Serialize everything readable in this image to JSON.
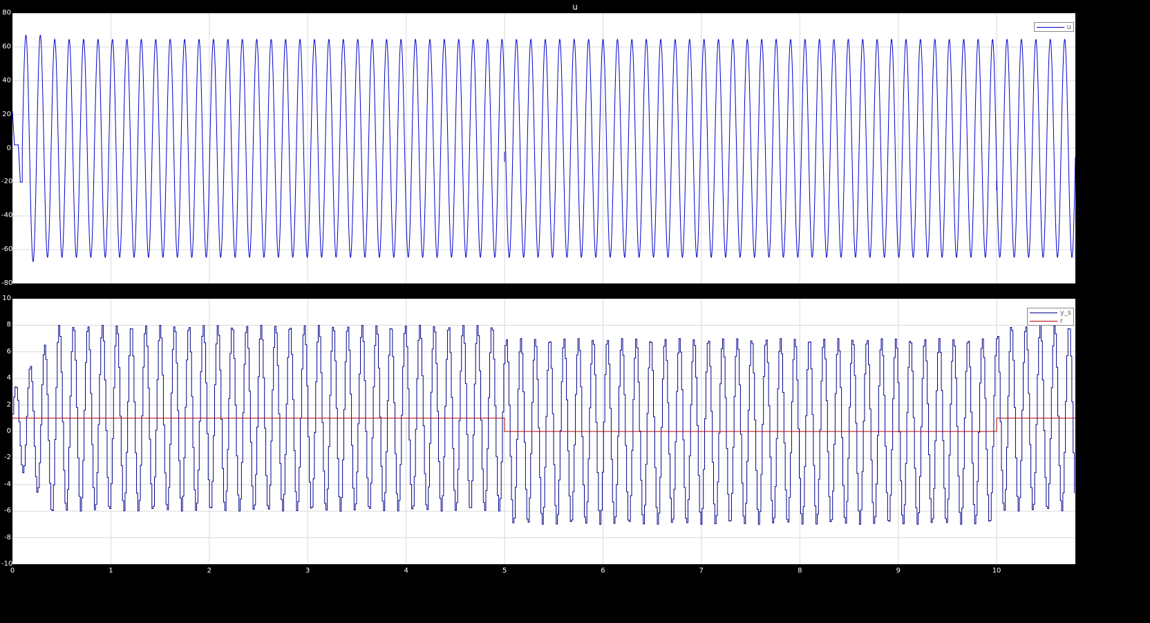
{
  "chart_data": [
    {
      "type": "line",
      "title": "u",
      "xlabel": "",
      "ylabel": "",
      "xlim": [
        0,
        10.8
      ],
      "ylim": [
        -80,
        80
      ],
      "yticks": [
        "80",
        "60",
        "40",
        "20",
        "0",
        "-20",
        "-40",
        "-60",
        "-80"
      ],
      "grid": true,
      "legend_position": "top-right",
      "series": [
        {
          "name": "u",
          "color": "#0000cc",
          "description_values": {
            "initial": [
              [
                0,
                22
              ],
              [
                0.02,
                2
              ],
              [
                0.06,
                2
              ],
              [
                0.08,
                -20
              ],
              [
                0.1,
                -20
              ]
            ],
            "period": 0.1466,
            "amplitude_max": 65,
            "amplitude_min": -65,
            "glitch_points": [
              [
                5.0,
                -5
              ],
              [
                10.0,
                -22
              ]
            ]
          }
        }
      ]
    },
    {
      "type": "line",
      "title": "",
      "xlabel": "",
      "ylabel": "",
      "xlim": [
        0,
        10.8
      ],
      "ylim": [
        -10,
        10
      ],
      "yticks": [
        "10",
        "8",
        "6",
        "4",
        "2",
        "0",
        "-2",
        "-4",
        "-6",
        "-8",
        "-10"
      ],
      "xticks": [
        "0",
        "1",
        "2",
        "3",
        "4",
        "5",
        "6",
        "7",
        "8",
        "9",
        "10"
      ],
      "grid": true,
      "legend_position": "top-right",
      "series": [
        {
          "name": "y_s",
          "color": "#00008b",
          "description_values": {
            "period": 0.1466,
            "max_0_5": 8,
            "min_0_5": -6,
            "max_5_10": 7,
            "min_5_10": -7,
            "max_10_end": 8,
            "min_10_end": -6
          }
        },
        {
          "name": "r",
          "color": "#b00000",
          "values": [
            [
              0,
              1
            ],
            [
              5,
              1
            ],
            [
              5,
              0
            ],
            [
              10,
              0
            ],
            [
              10,
              1
            ],
            [
              10.8,
              1
            ]
          ]
        }
      ]
    }
  ]
}
